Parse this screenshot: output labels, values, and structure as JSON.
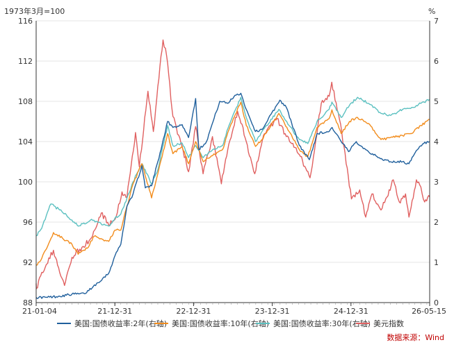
{
  "chart_data": {
    "type": "line",
    "left_axis_label": "1973年3月=100",
    "right_axis_label": "%",
    "x_tick_labels": [
      "21-01-04",
      "21-12-31",
      "22-12-31",
      "23-12-31",
      "24-12-31",
      "26-05-15"
    ],
    "x_range": [
      "2021-01-04",
      "2026-05-15"
    ],
    "y_left_range": [
      88,
      116
    ],
    "y_left_ticks": [
      "88",
      "92",
      "96",
      "100",
      "104",
      "108",
      "112",
      "116"
    ],
    "y_right_range": [
      0,
      7
    ],
    "y_right_ticks": [
      "0",
      "1",
      "2",
      "3",
      "4",
      "5",
      "6",
      "7"
    ],
    "source": "数据来源：Wind",
    "series": [
      {
        "name": "美国:国债收益率:2年(右轴)",
        "axis": "right",
        "color": "#1f5f9c",
        "points": [
          [
            "2021-01-04",
            0.13
          ],
          [
            "2021-03-01",
            0.13
          ],
          [
            "2021-05-01",
            0.16
          ],
          [
            "2021-07-01",
            0.21
          ],
          [
            "2021-09-01",
            0.22
          ],
          [
            "2021-10-15",
            0.4
          ],
          [
            "2021-12-01",
            0.6
          ],
          [
            "2021-12-31",
            0.73
          ],
          [
            "2022-02-01",
            1.18
          ],
          [
            "2022-03-01",
            1.45
          ],
          [
            "2022-04-01",
            2.4
          ],
          [
            "2022-05-01",
            2.7
          ],
          [
            "2022-06-14",
            3.4
          ],
          [
            "2022-07-01",
            2.85
          ],
          [
            "2022-08-01",
            2.9
          ],
          [
            "2022-09-01",
            3.5
          ],
          [
            "2022-10-20",
            4.5
          ],
          [
            "2022-11-15",
            4.35
          ],
          [
            "2022-12-31",
            4.42
          ],
          [
            "2023-02-01",
            4.1
          ],
          [
            "2023-03-08",
            5.07
          ],
          [
            "2023-03-24",
            3.8
          ],
          [
            "2023-05-01",
            4.0
          ],
          [
            "2023-07-06",
            5.0
          ],
          [
            "2023-08-15",
            4.95
          ],
          [
            "2023-09-20",
            5.15
          ],
          [
            "2023-10-19",
            5.2
          ],
          [
            "2023-11-15",
            4.8
          ],
          [
            "2023-12-31",
            4.25
          ],
          [
            "2024-02-01",
            4.3
          ],
          [
            "2024-04-30",
            5.03
          ],
          [
            "2024-06-01",
            4.85
          ],
          [
            "2024-08-05",
            3.9
          ],
          [
            "2024-09-24",
            3.55
          ],
          [
            "2024-11-01",
            4.2
          ],
          [
            "2024-12-31",
            4.25
          ],
          [
            "2025-01-15",
            4.35
          ],
          [
            "2025-03-01",
            4.0
          ],
          [
            "2025-04-07",
            3.75
          ],
          [
            "2025-05-15",
            4.0
          ],
          [
            "2025-07-01",
            3.8
          ],
          [
            "2025-09-01",
            3.6
          ],
          [
            "2025-11-01",
            3.5
          ],
          [
            "2025-12-31",
            3.5
          ],
          [
            "2026-02-01",
            3.45
          ],
          [
            "2026-03-15",
            3.8
          ],
          [
            "2026-04-15",
            3.95
          ],
          [
            "2026-05-15",
            4.0
          ]
        ]
      },
      {
        "name": "美国:国债收益率:10年(右轴)",
        "axis": "right",
        "color": "#f28c1c",
        "points": [
          [
            "2021-01-04",
            0.93
          ],
          [
            "2021-02-01",
            1.1
          ],
          [
            "2021-03-31",
            1.74
          ],
          [
            "2021-05-15",
            1.6
          ],
          [
            "2021-07-01",
            1.45
          ],
          [
            "2021-08-01",
            1.2
          ],
          [
            "2021-09-15",
            1.35
          ],
          [
            "2021-10-20",
            1.65
          ],
          [
            "2021-12-31",
            1.52
          ],
          [
            "2022-01-31",
            1.8
          ],
          [
            "2022-03-01",
            1.8
          ],
          [
            "2022-04-01",
            2.4
          ],
          [
            "2022-05-01",
            2.95
          ],
          [
            "2022-06-14",
            3.45
          ],
          [
            "2022-08-01",
            2.6
          ],
          [
            "2022-09-01",
            3.2
          ],
          [
            "2022-10-20",
            4.2
          ],
          [
            "2022-11-15",
            3.7
          ],
          [
            "2022-12-31",
            3.88
          ],
          [
            "2023-02-01",
            3.45
          ],
          [
            "2023-03-08",
            4.0
          ],
          [
            "2023-04-15",
            3.5
          ],
          [
            "2023-06-01",
            3.65
          ],
          [
            "2023-07-20",
            3.8
          ],
          [
            "2023-08-21",
            4.3
          ],
          [
            "2023-10-19",
            4.98
          ],
          [
            "2023-11-15",
            4.4
          ],
          [
            "2023-12-31",
            3.88
          ],
          [
            "2024-02-01",
            4.05
          ],
          [
            "2024-04-25",
            4.7
          ],
          [
            "2024-06-15",
            4.25
          ],
          [
            "2024-08-05",
            3.8
          ],
          [
            "2024-09-16",
            3.62
          ],
          [
            "2024-11-01",
            4.35
          ],
          [
            "2024-12-31",
            4.57
          ],
          [
            "2025-01-14",
            4.79
          ],
          [
            "2025-03-01",
            4.2
          ],
          [
            "2025-04-11",
            4.5
          ],
          [
            "2025-05-21",
            4.6
          ],
          [
            "2025-07-15",
            4.45
          ],
          [
            "2025-09-15",
            4.05
          ],
          [
            "2025-11-01",
            4.1
          ],
          [
            "2025-12-31",
            4.15
          ],
          [
            "2026-02-15",
            4.2
          ],
          [
            "2026-04-01",
            4.4
          ],
          [
            "2026-05-15",
            4.55
          ]
        ]
      },
      {
        "name": "美国:国债收益率:30年(右轴)",
        "axis": "right",
        "color": "#5bc0c0",
        "points": [
          [
            "2021-01-04",
            1.66
          ],
          [
            "2021-02-01",
            1.85
          ],
          [
            "2021-03-18",
            2.45
          ],
          [
            "2021-05-01",
            2.3
          ],
          [
            "2021-07-01",
            2.05
          ],
          [
            "2021-08-01",
            1.9
          ],
          [
            "2021-10-01",
            2.05
          ],
          [
            "2021-12-31",
            1.9
          ],
          [
            "2022-01-31",
            2.1
          ],
          [
            "2022-03-01",
            2.2
          ],
          [
            "2022-04-01",
            2.6
          ],
          [
            "2022-05-01",
            3.0
          ],
          [
            "2022-06-14",
            3.45
          ],
          [
            "2022-08-01",
            2.95
          ],
          [
            "2022-09-01",
            3.3
          ],
          [
            "2022-10-20",
            4.4
          ],
          [
            "2022-11-15",
            3.9
          ],
          [
            "2022-12-31",
            3.96
          ],
          [
            "2023-02-01",
            3.6
          ],
          [
            "2023-03-08",
            3.9
          ],
          [
            "2023-04-15",
            3.6
          ],
          [
            "2023-06-01",
            3.8
          ],
          [
            "2023-07-20",
            3.9
          ],
          [
            "2023-08-21",
            4.4
          ],
          [
            "2023-10-19",
            5.1
          ],
          [
            "2023-11-15",
            4.6
          ],
          [
            "2023-12-31",
            4.0
          ],
          [
            "2024-02-01",
            4.25
          ],
          [
            "2024-04-25",
            4.8
          ],
          [
            "2024-06-15",
            4.4
          ],
          [
            "2024-08-05",
            4.05
          ],
          [
            "2024-09-16",
            3.95
          ],
          [
            "2024-11-01",
            4.5
          ],
          [
            "2024-12-31",
            4.8
          ],
          [
            "2025-01-14",
            4.98
          ],
          [
            "2025-03-01",
            4.6
          ],
          [
            "2025-04-11",
            4.9
          ],
          [
            "2025-05-21",
            5.1
          ],
          [
            "2025-07-15",
            4.95
          ],
          [
            "2025-09-15",
            4.7
          ],
          [
            "2025-11-01",
            4.65
          ],
          [
            "2025-12-31",
            4.8
          ],
          [
            "2026-02-15",
            4.85
          ],
          [
            "2026-04-01",
            4.95
          ],
          [
            "2026-05-15",
            5.05
          ]
        ]
      },
      {
        "name": "美元指数",
        "axis": "left",
        "color": "#e06060",
        "points": [
          [
            "2021-01-04",
            89.9
          ],
          [
            "2021-01-06",
            89.4
          ],
          [
            "2021-02-01",
            91.0
          ],
          [
            "2021-03-31",
            93.2
          ],
          [
            "2021-05-01",
            91.0
          ],
          [
            "2021-05-25",
            89.7
          ],
          [
            "2021-07-01",
            92.5
          ],
          [
            "2021-08-20",
            93.5
          ],
          [
            "2021-09-30",
            94.3
          ],
          [
            "2021-11-24",
            96.9
          ],
          [
            "2021-12-31",
            95.7
          ],
          [
            "2022-02-01",
            96.3
          ],
          [
            "2022-03-07",
            99.0
          ],
          [
            "2022-04-01",
            98.5
          ],
          [
            "2022-05-13",
            104.9
          ],
          [
            "2022-06-01",
            101.5
          ],
          [
            "2022-07-14",
            109.0
          ],
          [
            "2022-08-10",
            105.0
          ],
          [
            "2022-09-01",
            109.5
          ],
          [
            "2022-09-27",
            114.1
          ],
          [
            "2022-10-15",
            112.5
          ],
          [
            "2022-11-15",
            106.5
          ],
          [
            "2022-12-31",
            103.5
          ],
          [
            "2023-02-01",
            101.0
          ],
          [
            "2023-03-08",
            105.5
          ],
          [
            "2023-04-14",
            100.8
          ],
          [
            "2023-05-31",
            104.5
          ],
          [
            "2023-07-14",
            99.8
          ],
          [
            "2023-08-15",
            103.2
          ],
          [
            "2023-10-03",
            107.0
          ],
          [
            "2023-11-15",
            104.0
          ],
          [
            "2023-12-27",
            100.8
          ],
          [
            "2024-02-14",
            104.8
          ],
          [
            "2024-04-16",
            106.3
          ],
          [
            "2024-06-01",
            104.5
          ],
          [
            "2024-08-05",
            102.7
          ],
          [
            "2024-09-27",
            100.4
          ],
          [
            "2024-11-22",
            107.8
          ],
          [
            "2024-12-31",
            108.5
          ],
          [
            "2025-01-13",
            109.9
          ],
          [
            "2025-02-15",
            106.8
          ],
          [
            "2025-03-15",
            103.5
          ],
          [
            "2025-04-21",
            98.3
          ],
          [
            "2025-06-01",
            99.2
          ],
          [
            "2025-07-01",
            96.5
          ],
          [
            "2025-08-01",
            98.8
          ],
          [
            "2025-09-15",
            97.2
          ],
          [
            "2025-10-15",
            98.5
          ],
          [
            "2025-11-15",
            100.2
          ],
          [
            "2025-12-15",
            98.0
          ],
          [
            "2026-01-15",
            98.8
          ],
          [
            "2026-02-01",
            96.5
          ],
          [
            "2026-03-10",
            100.2
          ],
          [
            "2026-04-01",
            99.5
          ],
          [
            "2026-04-20",
            98.0
          ],
          [
            "2026-05-15",
            98.5
          ]
        ]
      }
    ]
  }
}
